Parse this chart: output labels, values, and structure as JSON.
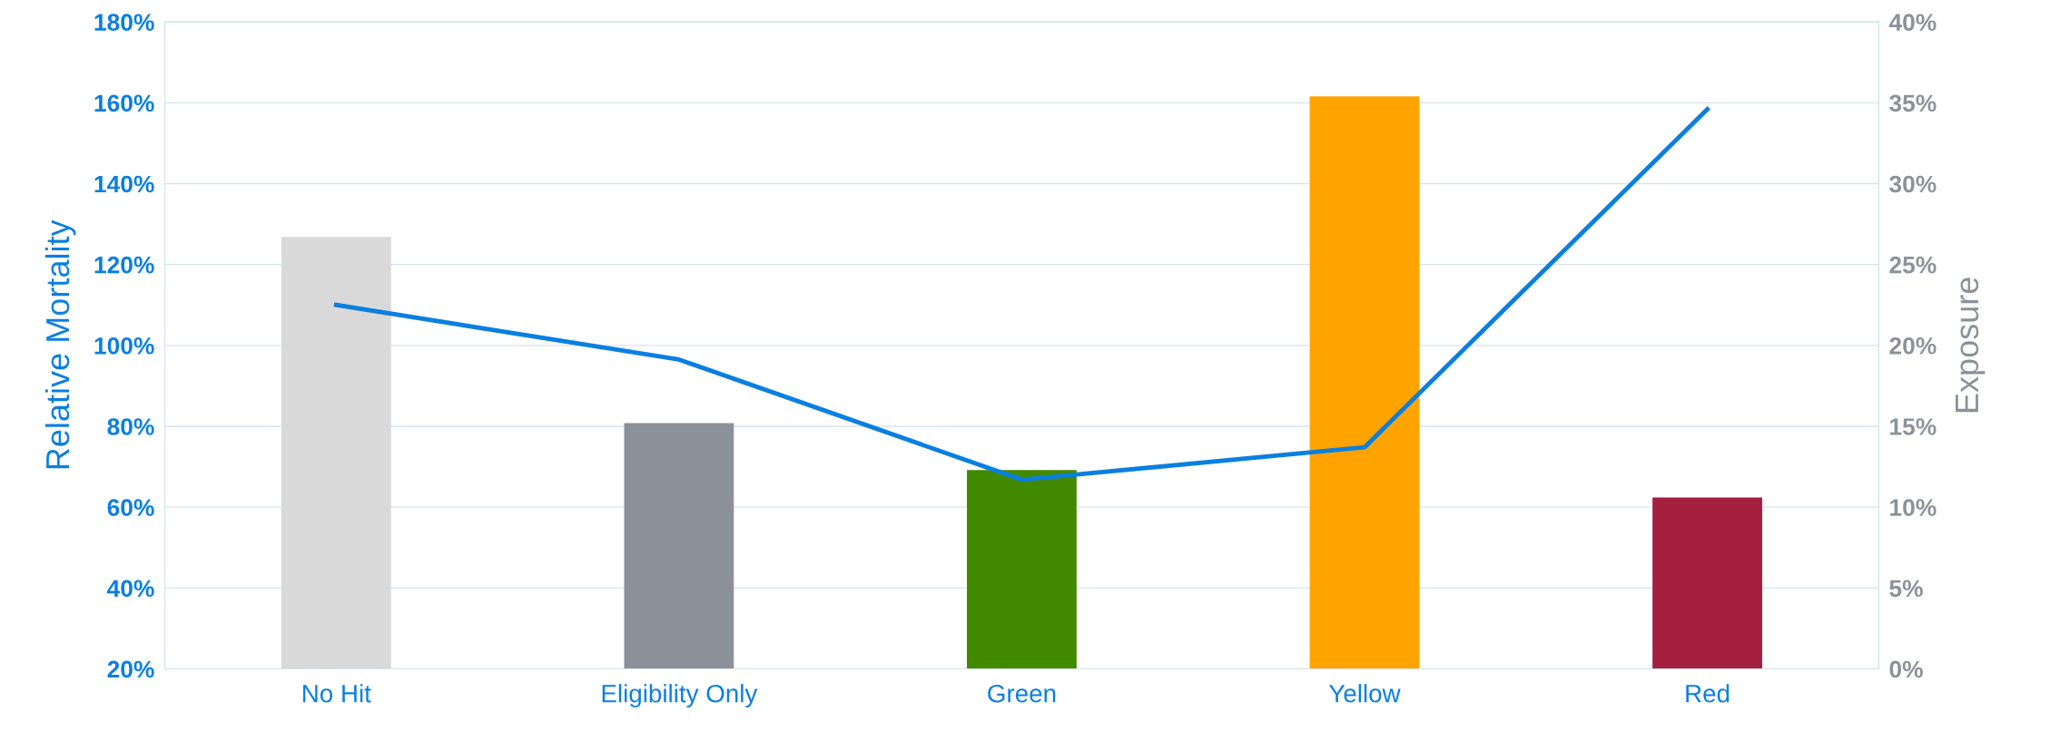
{
  "chart_data": {
    "type": "bar",
    "categories": [
      "No Hit",
      "Eligibility Only",
      "Green",
      "Yellow",
      "Red"
    ],
    "ylabel": "Relative Mortality",
    "y2label": "Exposure",
    "series": [
      {
        "axis": "y2",
        "colors": [
          "#d9d9d9",
          "#8c9199",
          "#418a00",
          "#ffa300",
          "#a51f3f"
        ],
        "values": [
          26.7,
          15.2,
          12.3,
          35.4,
          10.6
        ]
      },
      {
        "type": "line",
        "axis": "y",
        "color": "#0a7fe0",
        "values": [
          110,
          96.5,
          66.8,
          74.8,
          158.4
        ]
      }
    ],
    "ylim": [
      20,
      180
    ],
    "yticks": [
      {
        "value": 20,
        "label": "20%"
      },
      {
        "value": 40,
        "label": "40%"
      },
      {
        "value": 60,
        "label": "60%"
      },
      {
        "value": 80,
        "label": "80%"
      },
      {
        "value": 100,
        "label": "100%"
      },
      {
        "value": 120,
        "label": "120%"
      },
      {
        "value": 140,
        "label": "140%"
      },
      {
        "value": 160,
        "label": "160%"
      },
      {
        "value": 180,
        "label": "180%"
      }
    ],
    "y2lim": [
      0,
      40
    ],
    "y2ticks": [
      {
        "value": 0,
        "label": "0%"
      },
      {
        "value": 5,
        "label": "5%"
      },
      {
        "value": 10,
        "label": "10%"
      },
      {
        "value": 15,
        "label": "15%"
      },
      {
        "value": 20,
        "label": "20%"
      },
      {
        "value": 25,
        "label": "25%"
      },
      {
        "value": 30,
        "label": "30%"
      },
      {
        "value": 35,
        "label": "35%"
      },
      {
        "value": 40,
        "label": "40%"
      }
    ],
    "grid": "y",
    "marker": "none",
    "line_style": "solid"
  }
}
